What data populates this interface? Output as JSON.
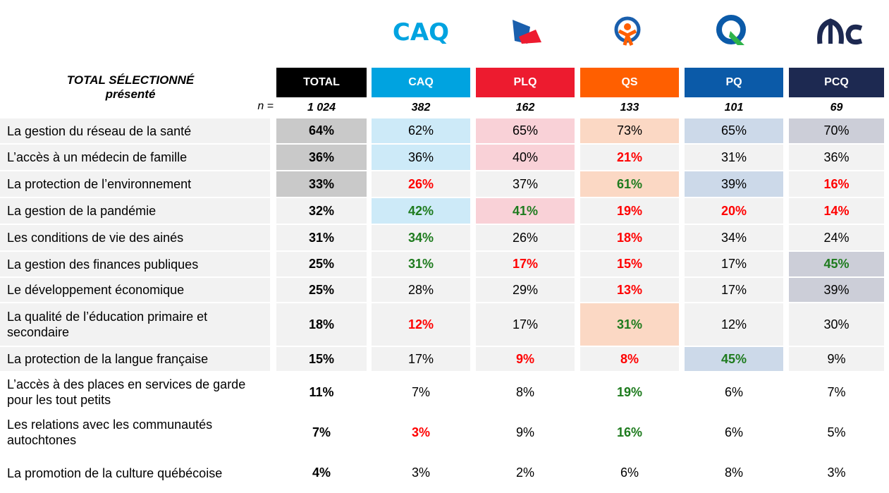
{
  "header": {
    "title_line1": "TOTAL SÉLECTIONNÉ",
    "title_line2": "présenté",
    "n_label": "n ="
  },
  "table": {
    "columns": [
      {
        "name": "TOTAL",
        "color": "#000000",
        "shade": "#c9c9c9",
        "n": "1 024"
      },
      {
        "name": "CAQ",
        "color": "#00a3e0",
        "shade": "#cdeaf8",
        "n": "382"
      },
      {
        "name": "PLQ",
        "color": "#ed1b2f",
        "shade": "#f9d1d7",
        "n": "162"
      },
      {
        "name": "QS",
        "color": "#ff5f00",
        "shade": "#fbd8c4",
        "n": "133"
      },
      {
        "name": "PQ",
        "color": "#0b5aa8",
        "shade": "#ccd9e9",
        "n": "101"
      },
      {
        "name": "PCQ",
        "color": "#1d2951",
        "shade": "#ccced8",
        "n": "69"
      }
    ],
    "emphasis_colors": {
      "red": "#ff0000",
      "green": "#1e7b1e"
    },
    "rows": [
      {
        "label": "La gestion du réseau de la santé",
        "cells": [
          "64%",
          "62%",
          "65%",
          "73%",
          "65%",
          "70%"
        ],
        "shaded": [
          true,
          true,
          true,
          true,
          true,
          true
        ],
        "emphasis": [
          null,
          null,
          null,
          null,
          null,
          null
        ]
      },
      {
        "label": "L’accès à un médecin de famille",
        "cells": [
          "36%",
          "36%",
          "40%",
          "21%",
          "31%",
          "36%"
        ],
        "shaded": [
          true,
          true,
          true,
          false,
          false,
          false
        ],
        "emphasis": [
          null,
          null,
          null,
          "red",
          null,
          null
        ]
      },
      {
        "label": "La protection de l’environnement",
        "cells": [
          "33%",
          "26%",
          "37%",
          "61%",
          "39%",
          "16%"
        ],
        "shaded": [
          true,
          false,
          false,
          true,
          true,
          false
        ],
        "emphasis": [
          null,
          "red",
          null,
          "green",
          null,
          "red"
        ]
      },
      {
        "label": "La gestion de la pandémie",
        "cells": [
          "32%",
          "42%",
          "41%",
          "19%",
          "20%",
          "14%"
        ],
        "shaded": [
          false,
          true,
          true,
          false,
          false,
          false
        ],
        "emphasis": [
          null,
          "green",
          "green",
          "red",
          "red",
          "red"
        ]
      },
      {
        "label": "Les conditions de vie des ainés",
        "cells": [
          "31%",
          "34%",
          "26%",
          "18%",
          "34%",
          "24%"
        ],
        "shaded": [
          false,
          false,
          false,
          false,
          false,
          false
        ],
        "emphasis": [
          null,
          "green",
          null,
          "red",
          null,
          null
        ]
      },
      {
        "label": "La gestion des finances publiques",
        "cells": [
          "25%",
          "31%",
          "17%",
          "15%",
          "17%",
          "45%"
        ],
        "shaded": [
          false,
          false,
          false,
          false,
          false,
          true
        ],
        "emphasis": [
          null,
          "green",
          "red",
          "red",
          null,
          "green"
        ]
      },
      {
        "label": "Le développement économique",
        "cells": [
          "25%",
          "28%",
          "29%",
          "13%",
          "17%",
          "39%"
        ],
        "shaded": [
          false,
          false,
          false,
          false,
          false,
          true
        ],
        "emphasis": [
          null,
          null,
          null,
          "red",
          null,
          null
        ]
      },
      {
        "label": "La qualité de l’éducation primaire et secondaire",
        "cells": [
          "18%",
          "12%",
          "17%",
          "31%",
          "12%",
          "30%"
        ],
        "shaded": [
          false,
          false,
          false,
          true,
          false,
          false
        ],
        "emphasis": [
          null,
          "red",
          null,
          "green",
          null,
          null
        ]
      },
      {
        "label": "La protection de la langue française",
        "cells": [
          "15%",
          "17%",
          "9%",
          "8%",
          "45%",
          "9%"
        ],
        "shaded": [
          false,
          false,
          false,
          false,
          true,
          false
        ],
        "emphasis": [
          null,
          null,
          "red",
          "red",
          "green",
          null
        ]
      },
      {
        "label": "L’accès à des places en services de garde pour les tout petits",
        "cells": [
          "11%",
          "7%",
          "8%",
          "19%",
          "6%",
          "7%"
        ],
        "shaded": [
          false,
          false,
          false,
          false,
          false,
          false
        ],
        "emphasis": [
          null,
          null,
          null,
          "green",
          null,
          null
        ]
      },
      {
        "label": "Les relations avec les communautés autochtones",
        "cells": [
          "7%",
          "3%",
          "9%",
          "16%",
          "6%",
          "5%"
        ],
        "shaded": [
          false,
          false,
          false,
          false,
          false,
          false
        ],
        "emphasis": [
          null,
          "red",
          null,
          "green",
          null,
          null
        ]
      },
      {
        "label": "La promotion de la culture québécoise",
        "cells": [
          "4%",
          "3%",
          "2%",
          "6%",
          "8%",
          "3%"
        ],
        "shaded": [
          false,
          false,
          false,
          false,
          false,
          false
        ],
        "emphasis": [
          null,
          null,
          null,
          null,
          null,
          null
        ]
      }
    ]
  }
}
